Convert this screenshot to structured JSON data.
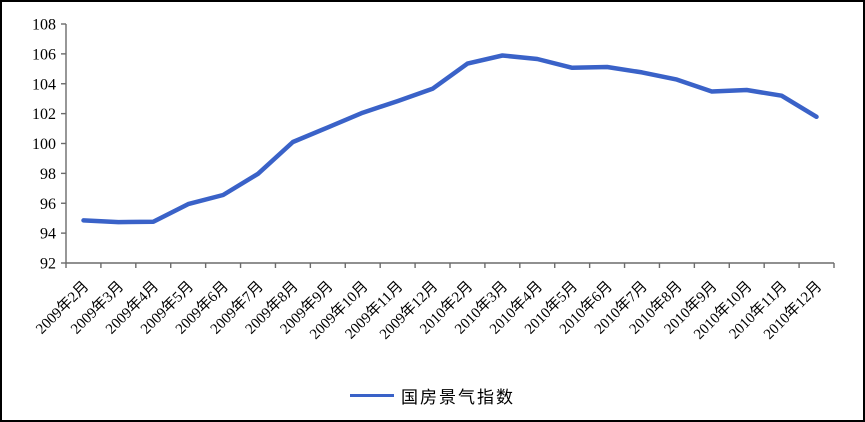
{
  "window": {
    "background": "#ffffff",
    "border_color": "#000000"
  },
  "chart_data": {
    "type": "line",
    "title": "",
    "xlabel": "",
    "ylabel": "",
    "categories": [
      "2009年2月",
      "2009年3月",
      "2009年4月",
      "2009年5月",
      "2009年6月",
      "2009年7月",
      "2009年8月",
      "2009年9月",
      "2009年10月",
      "2009年11月",
      "2009年12月",
      "2010年2月",
      "2010年3月",
      "2010年4月",
      "2010年5月",
      "2010年6月",
      "2010年7月",
      "2010年8月",
      "2010年9月",
      "2010年10月",
      "2010年11月",
      "2010年12月"
    ],
    "series": [
      {
        "name": "国房景气指数",
        "color": "#3a62c8",
        "values": [
          94.85,
          94.74,
          94.76,
          95.94,
          96.55,
          97.97,
          100.1,
          101.08,
          102.06,
          102.84,
          103.66,
          105.35,
          105.89,
          105.66,
          105.07,
          105.12,
          104.76,
          104.28,
          103.48,
          103.58,
          103.2,
          101.79
        ]
      }
    ],
    "ylim": [
      92,
      108
    ],
    "yticks": [
      92,
      94,
      96,
      98,
      100,
      102,
      104,
      106,
      108
    ],
    "grid": false,
    "legend_position": "bottom-center",
    "x_label_rotation_deg": -45,
    "axis_color": "#6b6b6b",
    "label_color": "#000000"
  },
  "legend": {
    "items": [
      {
        "label": "国房景气指数",
        "swatch": "line",
        "color": "#3a62c8"
      }
    ]
  }
}
